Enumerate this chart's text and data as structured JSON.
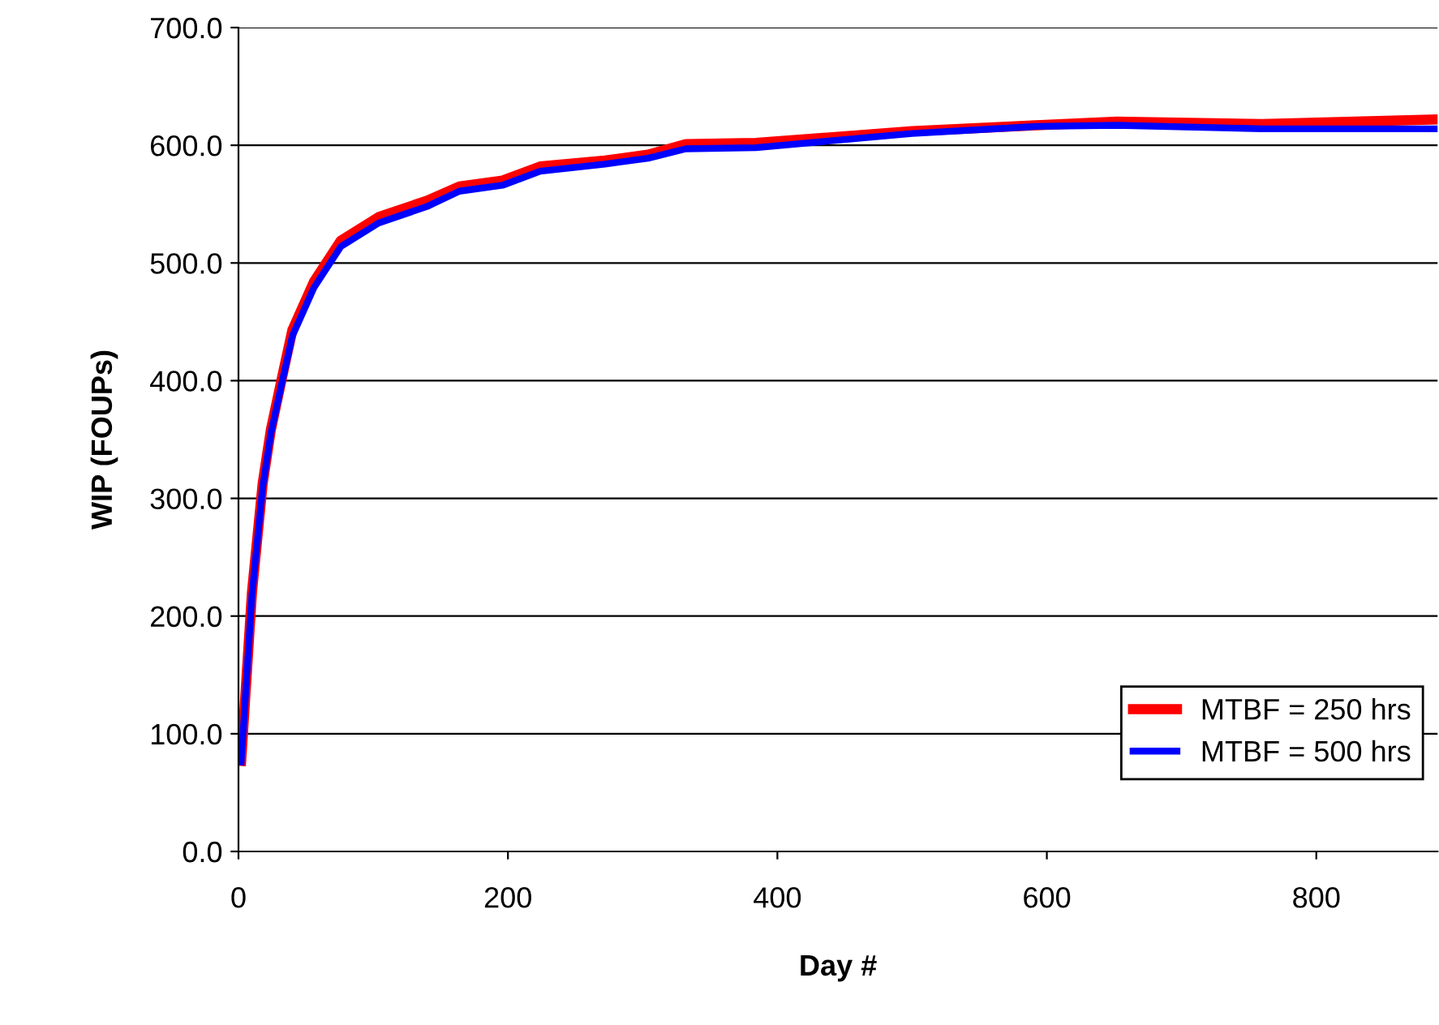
{
  "chart_data": {
    "type": "line",
    "xlabel": "Day #",
    "ylabel": "WIP (FOUPs)",
    "xlim": [
      0,
      890
    ],
    "xticks": [
      0,
      200,
      400,
      600,
      800
    ],
    "ylim": [
      0,
      700
    ],
    "yticks": [
      {
        "value": 0,
        "label": "0.0"
      },
      {
        "value": 100,
        "label": "100.0"
      },
      {
        "value": 200,
        "label": "200.0"
      },
      {
        "value": 300,
        "label": "300.0"
      },
      {
        "value": 400,
        "label": "400.0"
      },
      {
        "value": 500,
        "label": "500.0"
      },
      {
        "value": 600,
        "label": "600.0"
      },
      {
        "value": 700,
        "label": "700.0"
      }
    ],
    "grid": "y",
    "legend": "bottom right",
    "marker": "none",
    "line_style": "solid",
    "series": [
      {
        "name": "MTBF = 250 hrs",
        "color": "#ff0000",
        "x": [
          2,
          10,
          18,
          24,
          32,
          40,
          56,
          76,
          104,
          140,
          164,
          196,
          224,
          272,
          304,
          332,
          384,
          500,
          592,
          652,
          760,
          889
        ],
        "values": [
          77,
          220,
          313,
          358,
          401,
          443,
          484,
          519,
          539,
          553,
          565,
          570,
          582,
          587,
          592,
          601,
          602,
          612,
          617,
          620,
          618,
          622
        ]
      },
      {
        "name": "MTBF = 500 hrs",
        "color": "#0000ff",
        "x": [
          2,
          10,
          18,
          24,
          32,
          40,
          56,
          76,
          104,
          140,
          164,
          196,
          224,
          272,
          304,
          332,
          384,
          500,
          592,
          652,
          760,
          889
        ],
        "values": [
          76,
          218,
          310,
          355,
          397,
          438,
          479,
          514,
          534,
          548,
          561,
          566,
          578,
          584,
          589,
          597,
          598,
          610,
          616,
          617,
          614,
          614
        ]
      }
    ]
  }
}
